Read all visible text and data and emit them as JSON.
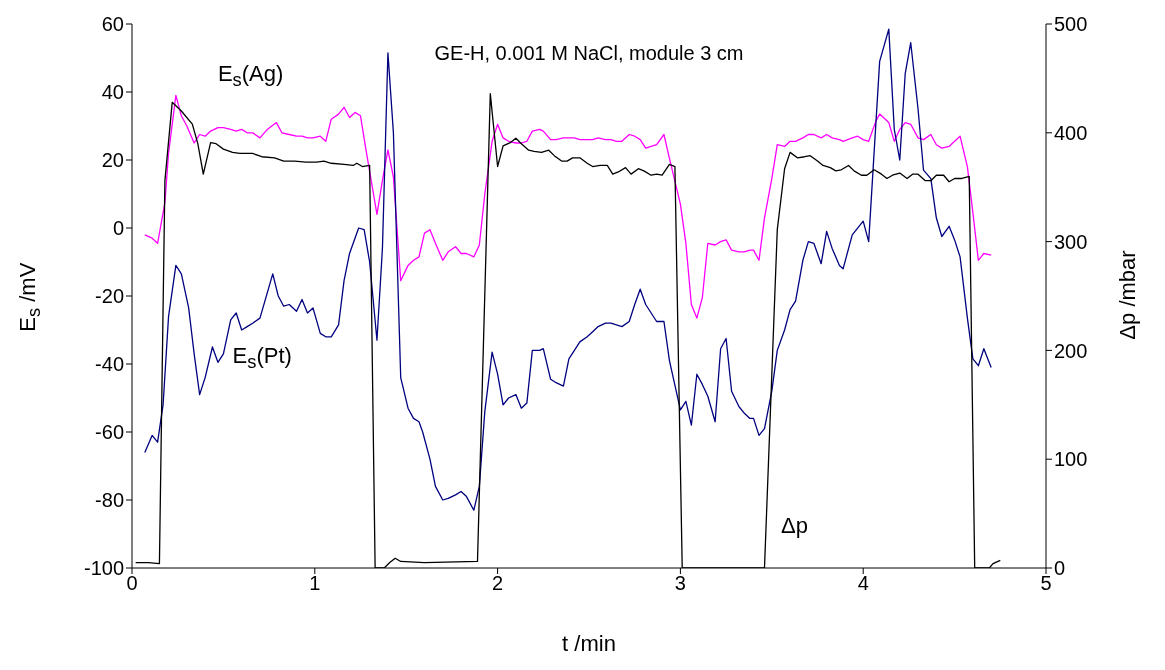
{
  "chart_data": {
    "type": "line",
    "title": "GE-H, 0.001 M NaCl, module 3 cm",
    "xlabel": "t /min",
    "ylabel": "E$_{s}$ /mV",
    "y2label": "Δp /mbar",
    "xlim": [
      0,
      5
    ],
    "xticks": [
      0,
      1,
      2,
      3,
      4,
      5
    ],
    "ylim": [
      -100,
      60
    ],
    "yticks": [
      -100,
      -80,
      -60,
      -40,
      -20,
      0,
      20,
      40,
      60
    ],
    "y2lim": [
      0,
      500
    ],
    "y2ticks": [
      0,
      100,
      200,
      300,
      400,
      500
    ],
    "marker": "none",
    "line_style": "solid",
    "series": [
      {
        "name": "E$_{s}$(Ag)",
        "color": "#ff00ff",
        "x": [
          0.07,
          0.11,
          0.14,
          0.18,
          0.2,
          0.24,
          0.27,
          0.3,
          0.34,
          0.37,
          0.4,
          0.43,
          0.47,
          0.5,
          0.54,
          0.57,
          0.6,
          0.63,
          0.66,
          0.7,
          0.74,
          0.79,
          0.82,
          0.86,
          0.9,
          0.93,
          0.96,
          0.99,
          1.03,
          1.06,
          1.09,
          1.13,
          1.16,
          1.19,
          1.22,
          1.25,
          1.28,
          1.34,
          1.37,
          1.4,
          1.43,
          1.47,
          1.51,
          1.54,
          1.57,
          1.6,
          1.63,
          1.66,
          1.7,
          1.73,
          1.77,
          1.8,
          1.83,
          1.87,
          1.9,
          1.93,
          1.97,
          2.0,
          2.03,
          2.06,
          2.1,
          2.13,
          2.16,
          2.19,
          2.23,
          2.25,
          2.29,
          2.32,
          2.36,
          2.39,
          2.42,
          2.45,
          2.49,
          2.52,
          2.55,
          2.59,
          2.62,
          2.65,
          2.68,
          2.72,
          2.75,
          2.78,
          2.81,
          2.84,
          2.87,
          2.91,
          2.94,
          3.0,
          3.03,
          3.06,
          3.09,
          3.12,
          3.15,
          3.19,
          3.22,
          3.25,
          3.28,
          3.32,
          3.35,
          3.38,
          3.4,
          3.43,
          3.46,
          3.5,
          3.53,
          3.57,
          3.6,
          3.63,
          3.67,
          3.7,
          3.73,
          3.77,
          3.8,
          3.83,
          3.87,
          3.89,
          3.94,
          3.97,
          4.0,
          4.03,
          4.07,
          4.09,
          4.14,
          4.17,
          4.2,
          4.23,
          4.26,
          4.3,
          4.33,
          4.37,
          4.4,
          4.43,
          4.47,
          4.5,
          4.53,
          4.57,
          4.6,
          4.63,
          4.66,
          4.7
        ],
        "values": [
          -2,
          -3,
          -4.5,
          7.5,
          22,
          39,
          33,
          30,
          25,
          27.5,
          27,
          28.5,
          29.5,
          29.5,
          29,
          28.5,
          29,
          28,
          28,
          26.5,
          29,
          31,
          28,
          27.5,
          27,
          27,
          26.5,
          26.5,
          27,
          25.5,
          32,
          33.5,
          35.5,
          32.5,
          34,
          33,
          23,
          4,
          14,
          23,
          15,
          -15.5,
          -11,
          -9.5,
          -8.5,
          -1.5,
          -0.5,
          -4.5,
          -9.5,
          -7,
          -5.5,
          -7.5,
          -7.5,
          -8.5,
          -5,
          10,
          25.5,
          30.5,
          26.5,
          25.5,
          25,
          25,
          25.5,
          28.5,
          29,
          28.5,
          26,
          26,
          26.5,
          26.5,
          26.5,
          26,
          26,
          26,
          26.5,
          26,
          26,
          25.5,
          25.5,
          27.5,
          27,
          26,
          23.5,
          24,
          24.5,
          27.5,
          20.5,
          7,
          -4.5,
          -22.5,
          -26.5,
          -20.5,
          -4.5,
          -5,
          -4,
          -3.5,
          -6.5,
          -7,
          -7,
          -6.5,
          -6.5,
          -9.5,
          3,
          14.5,
          24.5,
          24,
          25.5,
          25.5,
          26.5,
          27.5,
          27.5,
          26.5,
          27.5,
          26.5,
          26,
          25.5,
          26.5,
          27,
          26,
          25.5,
          31.5,
          33.5,
          31,
          25.5,
          29,
          31,
          30.5,
          26.5,
          26,
          27.5,
          24.5,
          23.5,
          24,
          25.5,
          27,
          18,
          4.5,
          -9.5,
          -7.5,
          -8
        ]
      },
      {
        "name": "E$_{s}$(Pt)",
        "color": "#000080",
        "x": [
          0.07,
          0.11,
          0.14,
          0.17,
          0.2,
          0.24,
          0.27,
          0.31,
          0.34,
          0.37,
          0.4,
          0.44,
          0.47,
          0.5,
          0.54,
          0.57,
          0.6,
          0.63,
          0.66,
          0.7,
          0.77,
          0.8,
          0.83,
          0.86,
          0.9,
          0.93,
          0.96,
          0.99,
          1.03,
          1.06,
          1.09,
          1.13,
          1.16,
          1.19,
          1.24,
          1.27,
          1.3,
          1.34,
          1.37,
          1.4,
          1.43,
          1.47,
          1.51,
          1.54,
          1.57,
          1.59,
          1.63,
          1.66,
          1.7,
          1.73,
          1.77,
          1.8,
          1.83,
          1.87,
          1.9,
          1.93,
          1.97,
          2.0,
          2.03,
          2.06,
          2.1,
          2.13,
          2.16,
          2.19,
          2.23,
          2.25,
          2.29,
          2.32,
          2.36,
          2.39,
          2.42,
          2.45,
          2.49,
          2.52,
          2.55,
          2.59,
          2.62,
          2.65,
          2.68,
          2.72,
          2.75,
          2.78,
          2.81,
          2.84,
          2.87,
          2.91,
          2.94,
          3.0,
          3.03,
          3.06,
          3.09,
          3.12,
          3.15,
          3.19,
          3.22,
          3.25,
          3.28,
          3.32,
          3.35,
          3.38,
          3.4,
          3.43,
          3.46,
          3.5,
          3.53,
          3.57,
          3.6,
          3.63,
          3.67,
          3.7,
          3.73,
          3.77,
          3.8,
          3.83,
          3.87,
          3.89,
          3.94,
          4.0,
          4.03,
          4.09,
          4.14,
          4.17,
          4.2,
          4.23,
          4.26,
          4.3,
          4.33,
          4.37,
          4.4,
          4.43,
          4.47,
          4.5,
          4.53,
          4.57,
          4.6,
          4.63,
          4.66,
          4.7
        ],
        "values": [
          -66,
          -61,
          -63,
          -52,
          -26,
          -11,
          -13.5,
          -23.5,
          -37,
          -49,
          -44,
          -35,
          -39.5,
          -37,
          -27,
          -25,
          -30,
          -29,
          -28,
          -26.5,
          -13.5,
          -20,
          -23,
          -22.5,
          -24.5,
          -21,
          -25,
          -23.5,
          -31,
          -32,
          -32,
          -28.5,
          -15.5,
          -7.5,
          0,
          -0.5,
          -10,
          -33,
          -6,
          51.5,
          28,
          -44,
          -53,
          -56,
          -57,
          -60,
          -68,
          -76,
          -80,
          -79.5,
          -78.5,
          -77.5,
          -79,
          -83,
          -76,
          -54,
          -36.5,
          -43,
          -52,
          -50,
          -49,
          -53,
          -51.5,
          -36,
          -36,
          -35.5,
          -44.5,
          -45.5,
          -46.5,
          -38.5,
          -36,
          -33.5,
          -32,
          -30.5,
          -29,
          -28,
          -28,
          -28.5,
          -29,
          -27.5,
          -22.5,
          -18,
          -22.5,
          -25,
          -27.5,
          -27.5,
          -39,
          -53.5,
          -51,
          -58,
          -43,
          -46,
          -49.5,
          -57,
          -35.5,
          -32.5,
          -48,
          -52.5,
          -54.5,
          -56,
          -56,
          -61,
          -59,
          -48,
          -36,
          -30,
          -24,
          -21.5,
          -9.5,
          -4,
          -4.5,
          -10.5,
          -1,
          -6,
          -11,
          -12,
          -2,
          2,
          -4,
          49,
          58.5,
          29,
          20,
          45.5,
          54.5,
          35,
          17,
          14.5,
          3,
          -2.5,
          0.5,
          -3.5,
          -8.5,
          -26.5,
          -38.5,
          -40.5,
          -35.5,
          -41
        ]
      },
      {
        "name": "Δp",
        "color": "#000000",
        "axis": "y2",
        "x": [
          0.02,
          0.09,
          0.15,
          0.18,
          0.22,
          0.27,
          0.33,
          0.36,
          0.39,
          0.43,
          0.46,
          0.5,
          0.55,
          0.59,
          0.66,
          0.71,
          0.78,
          0.83,
          0.89,
          0.95,
          1.01,
          1.05,
          1.09,
          1.16,
          1.21,
          1.23,
          1.26,
          1.3,
          1.33,
          1.38,
          1.41,
          1.44,
          1.47,
          1.6,
          1.89,
          1.96,
          2.0,
          2.03,
          2.07,
          2.1,
          2.13,
          2.17,
          2.2,
          2.24,
          2.28,
          2.31,
          2.35,
          2.38,
          2.41,
          2.45,
          2.49,
          2.52,
          2.56,
          2.6,
          2.63,
          2.66,
          2.7,
          2.73,
          2.77,
          2.8,
          2.84,
          2.87,
          2.9,
          2.94,
          2.97,
          3.01,
          3.46,
          3.53,
          3.57,
          3.6,
          3.64,
          3.68,
          3.71,
          3.75,
          3.78,
          3.82,
          3.85,
          3.88,
          3.92,
          3.95,
          3.99,
          4.02,
          4.06,
          4.1,
          4.13,
          4.16,
          4.2,
          4.24,
          4.27,
          4.3,
          4.34,
          4.37,
          4.4,
          4.44,
          4.47,
          4.5,
          4.54,
          4.58,
          4.61,
          4.69,
          4.71,
          4.75
        ],
        "values": [
          5,
          5,
          4,
          356,
          428,
          420,
          408,
          390,
          362,
          391,
          390,
          385,
          382,
          381,
          381,
          378,
          377,
          374,
          374,
          373,
          373,
          374,
          372,
          371,
          370,
          372,
          369,
          370,
          0,
          0,
          5,
          9,
          6,
          5,
          6,
          436,
          369,
          388,
          391,
          395,
          390,
          384,
          383,
          382,
          384,
          379,
          374,
          374,
          377,
          377,
          372,
          369,
          370,
          370,
          362,
          364,
          368,
          362,
          367,
          365,
          361,
          362,
          361,
          371,
          369,
          0,
          0,
          311,
          367,
          382,
          377,
          378,
          379,
          374,
          370,
          368,
          365,
          366,
          370,
          365,
          361,
          361,
          366,
          362,
          358,
          361,
          363,
          358,
          362,
          362,
          356,
          356,
          361,
          361,
          355,
          358,
          358,
          360,
          0,
          0,
          4,
          7
        ]
      }
    ]
  }
}
